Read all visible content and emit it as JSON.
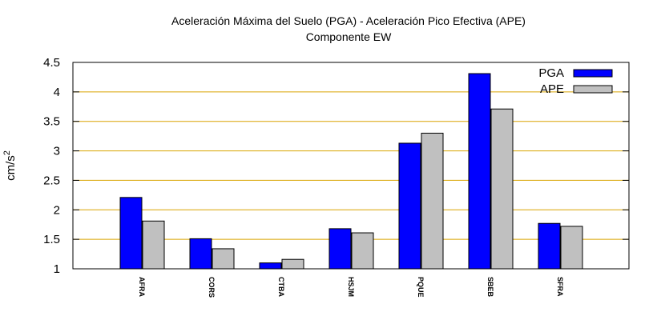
{
  "chart_data": {
    "type": "bar",
    "title": "Aceleración Máxima del Suelo (PGA) -  Aceleración Pico Efectiva (APE)",
    "subtitle": "Componente EW",
    "ylabel": "cm/s",
    "ylabel_sup": "2",
    "xlabel": "",
    "ylim": [
      1,
      4.5
    ],
    "yticks": [
      "1",
      "1.5",
      "2",
      "2.5",
      "3",
      "3.5",
      "4",
      "4.5"
    ],
    "ytick_values": [
      1,
      1.5,
      2,
      2.5,
      3,
      3.5,
      4,
      4.5
    ],
    "grid": "horizontal",
    "legend_position": "top-right",
    "categories": [
      "AFRA",
      "CORS",
      "CTBA",
      "HSJM",
      "PQUE",
      "SBEB",
      "SFRA"
    ],
    "series": [
      {
        "name": "PGA",
        "color": "#0000ff",
        "values": [
          2.21,
          1.51,
          1.1,
          1.68,
          3.13,
          4.31,
          1.77
        ]
      },
      {
        "name": "APE",
        "color": "#c0c0c0",
        "values": [
          1.81,
          1.34,
          1.16,
          1.61,
          3.3,
          3.71,
          1.72
        ]
      }
    ],
    "grid_color": "#d9a400"
  }
}
